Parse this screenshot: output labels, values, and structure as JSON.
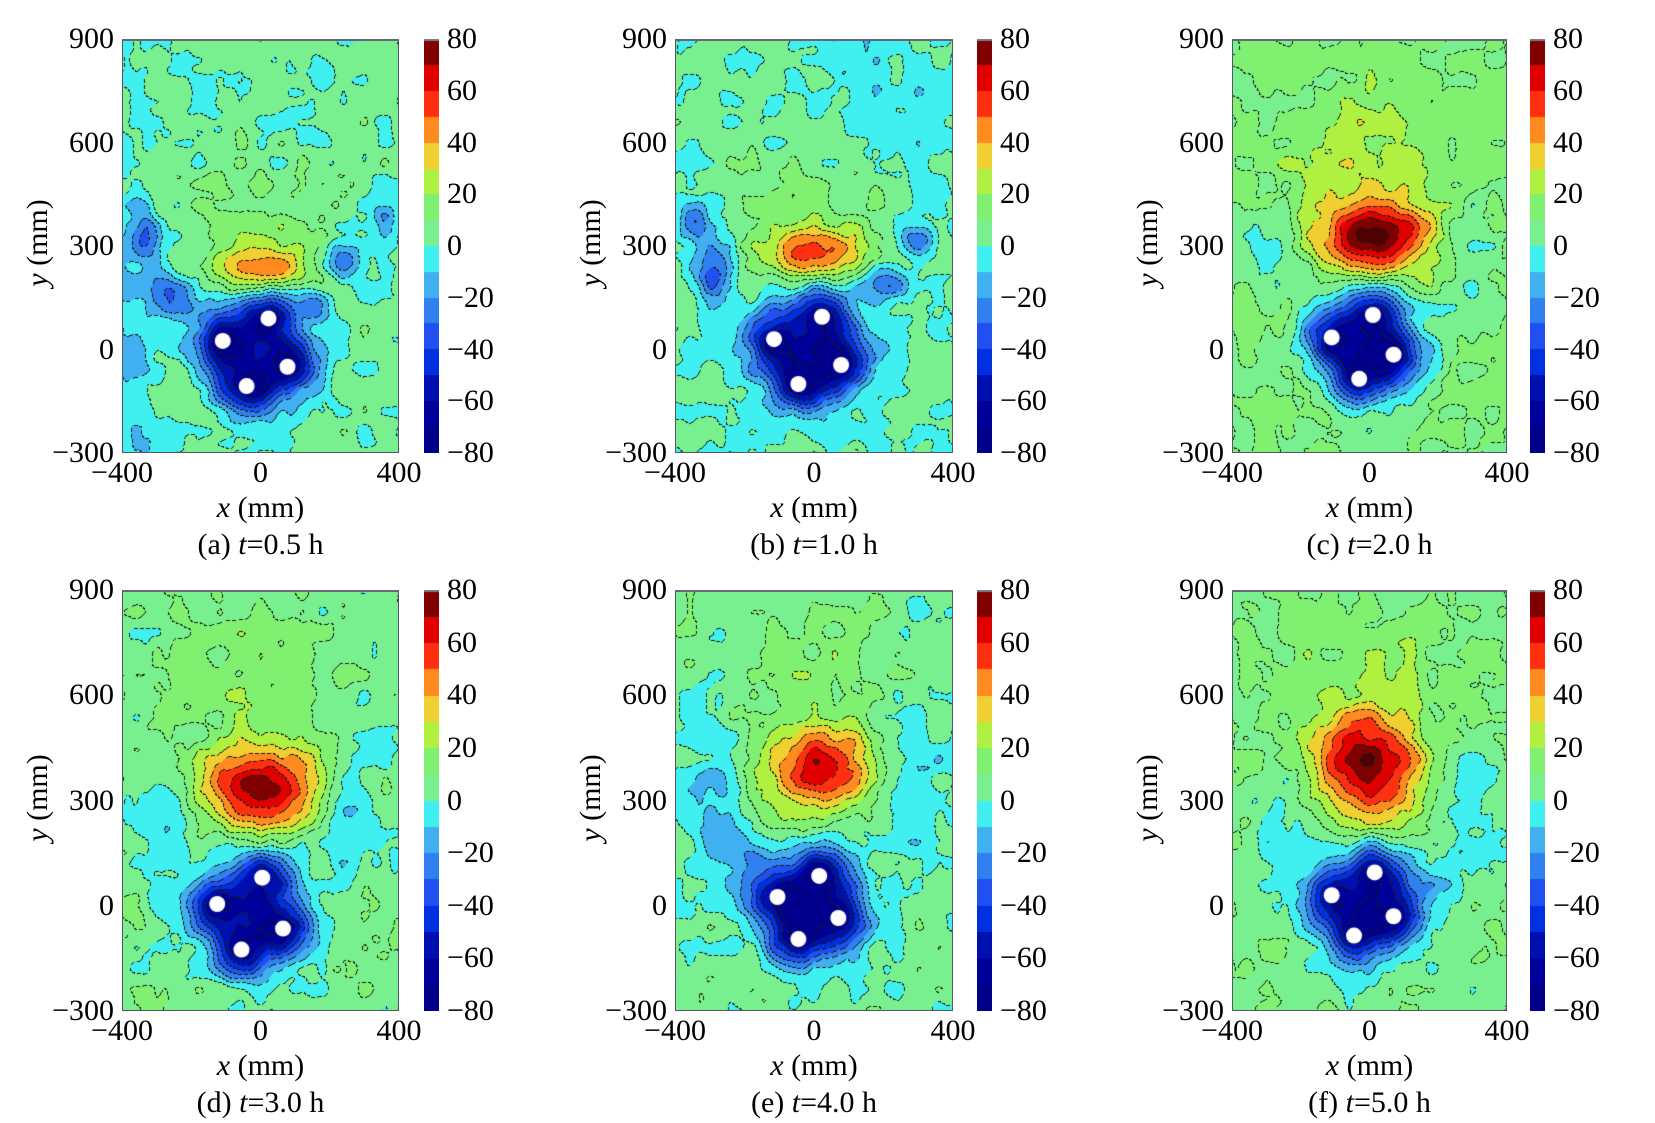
{
  "figure": {
    "x_axis_var": "x",
    "x_axis_unit": " (mm)",
    "y_axis_var": "y",
    "y_axis_unit": " (mm)"
  },
  "chart_data": [
    {
      "type": "heatmap",
      "subtype": "filled-contour",
      "panel": "a",
      "caption_prefix": "(a) ",
      "caption_var": "t",
      "caption_value": "=0.5 h",
      "xlabel": "x (mm)",
      "ylabel": "y (mm)",
      "xlim": [
        -400,
        400
      ],
      "ylim": [
        -300,
        900
      ],
      "xticks": [
        -400,
        0,
        400
      ],
      "yticks": [
        -300,
        0,
        300,
        600,
        900
      ],
      "colorbar": {
        "range": [
          -80,
          80
        ],
        "ticks": [
          80,
          60,
          40,
          20,
          0,
          -20,
          -40,
          -60,
          -80
        ]
      },
      "background_level": 3,
      "holes": [
        {
          "x": 23,
          "y": 90
        },
        {
          "x": -109,
          "y": 25
        },
        {
          "x": 78,
          "y": -50
        },
        {
          "x": -40,
          "y": -106
        }
      ],
      "features": [
        {
          "x": 10,
          "y": 230,
          "peak": 38,
          "sx": 110,
          "sy": 45
        },
        {
          "x": -20,
          "y": 360,
          "peak": 10,
          "sx": 160,
          "sy": 130
        },
        {
          "x": -330,
          "y": 330,
          "peak": -30,
          "sx": 30,
          "sy": 50
        },
        {
          "x": -250,
          "y": 160,
          "peak": -30,
          "sx": 45,
          "sy": 45
        },
        {
          "x": 230,
          "y": 260,
          "peak": -32,
          "sx": 45,
          "sy": 40
        },
        {
          "x": 150,
          "y": 130,
          "peak": -25,
          "sx": 35,
          "sy": 40
        },
        {
          "x": 360,
          "y": 380,
          "peak": -28,
          "sx": 25,
          "sy": 50
        },
        {
          "x": -380,
          "y": 100,
          "peak": -14,
          "sx": 60,
          "sy": 400
        }
      ]
    },
    {
      "type": "heatmap",
      "subtype": "filled-contour",
      "panel": "b",
      "caption_prefix": "(b) ",
      "caption_var": "t",
      "caption_value": "=1.0 h",
      "xlabel": "x (mm)",
      "ylabel": "y (mm)",
      "xlim": [
        -400,
        400
      ],
      "ylim": [
        -300,
        900
      ],
      "xticks": [
        -400,
        0,
        400
      ],
      "yticks": [
        -300,
        0,
        300,
        600,
        900
      ],
      "colorbar": {
        "range": [
          -80,
          80
        ],
        "ticks": [
          80,
          60,
          40,
          20,
          0,
          -20,
          -40,
          -60,
          -80
        ]
      },
      "background_level": 2,
      "holes": [
        {
          "x": 23,
          "y": 95
        },
        {
          "x": -115,
          "y": 30
        },
        {
          "x": 78,
          "y": -45
        },
        {
          "x": -45,
          "y": -100
        }
      ],
      "features": [
        {
          "x": 0,
          "y": 280,
          "peak": 45,
          "sx": 110,
          "sy": 55
        },
        {
          "x": -10,
          "y": 420,
          "peak": 14,
          "sx": 140,
          "sy": 120
        },
        {
          "x": -290,
          "y": 230,
          "peak": -34,
          "sx": 40,
          "sy": 70
        },
        {
          "x": 200,
          "y": 200,
          "peak": -32,
          "sx": 50,
          "sy": 40
        },
        {
          "x": 300,
          "y": 320,
          "peak": -30,
          "sx": 40,
          "sy": 35
        },
        {
          "x": -350,
          "y": 370,
          "peak": -25,
          "sx": 30,
          "sy": 35
        },
        {
          "x": 200,
          "y": 700,
          "peak": -8,
          "sx": 200,
          "sy": 150
        }
      ]
    },
    {
      "type": "heatmap",
      "subtype": "filled-contour",
      "panel": "c",
      "caption_prefix": "(c) ",
      "caption_var": "t",
      "caption_value": "=2.0 h",
      "xlabel": "x (mm)",
      "ylabel": "y (mm)",
      "xlim": [
        -400,
        400
      ],
      "ylim": [
        -300,
        900
      ],
      "xticks": [
        -400,
        0,
        400
      ],
      "yticks": [
        -300,
        0,
        300,
        600,
        900
      ],
      "colorbar": {
        "range": [
          -80,
          80
        ],
        "ticks": [
          80,
          60,
          40,
          20,
          0,
          -20,
          -40,
          -60,
          -80
        ]
      },
      "background_level": 10,
      "holes": [
        {
          "x": 10,
          "y": 100
        },
        {
          "x": -110,
          "y": 35
        },
        {
          "x": 70,
          "y": -15
        },
        {
          "x": -30,
          "y": -85
        }
      ],
      "features": [
        {
          "x": 20,
          "y": 330,
          "peak": 72,
          "sx": 110,
          "sy": 70
        },
        {
          "x": 0,
          "y": 560,
          "peak": 16,
          "sx": 180,
          "sy": 140
        },
        {
          "x": -300,
          "y": 300,
          "peak": -14,
          "sx": 60,
          "sy": 90
        },
        {
          "x": 300,
          "y": 300,
          "peak": -14,
          "sx": 60,
          "sy": 100
        },
        {
          "x": -260,
          "y": 700,
          "peak": -6,
          "sx": 60,
          "sy": 60
        }
      ]
    },
    {
      "type": "heatmap",
      "subtype": "filled-contour",
      "panel": "d",
      "caption_prefix": "(d) ",
      "caption_var": "t",
      "caption_value": "=3.0 h",
      "xlabel": "x (mm)",
      "ylabel": "y (mm)",
      "xlim": [
        -400,
        400
      ],
      "ylim": [
        -300,
        900
      ],
      "xticks": [
        -400,
        0,
        400
      ],
      "yticks": [
        -300,
        0,
        300,
        600,
        900
      ],
      "colorbar": {
        "range": [
          -80,
          80
        ],
        "ticks": [
          80,
          60,
          40,
          20,
          0,
          -20,
          -40,
          -60,
          -80
        ]
      },
      "background_level": 6,
      "holes": [
        {
          "x": 5,
          "y": 80
        },
        {
          "x": -125,
          "y": 5
        },
        {
          "x": 65,
          "y": -65
        },
        {
          "x": -55,
          "y": -125
        }
      ],
      "features": [
        {
          "x": 0,
          "y": 340,
          "peak": 72,
          "sx": 120,
          "sy": 80
        },
        {
          "x": 0,
          "y": 620,
          "peak": 10,
          "sx": 140,
          "sy": 140
        },
        {
          "x": 250,
          "y": 250,
          "peak": -22,
          "sx": 60,
          "sy": 90
        },
        {
          "x": -280,
          "y": 260,
          "peak": -16,
          "sx": 60,
          "sy": 120
        },
        {
          "x": 300,
          "y": 480,
          "peak": -10,
          "sx": 80,
          "sy": 80
        }
      ]
    },
    {
      "type": "heatmap",
      "subtype": "filled-contour",
      "panel": "e",
      "caption_prefix": "(e) ",
      "caption_var": "t",
      "caption_value": "=4.0 h",
      "xlabel": "x (mm)",
      "ylabel": "y (mm)",
      "xlim": [
        -400,
        400
      ],
      "ylim": [
        -300,
        900
      ],
      "xticks": [
        -400,
        0,
        400
      ],
      "yticks": [
        -300,
        0,
        300,
        600,
        900
      ],
      "colorbar": {
        "range": [
          -80,
          80
        ],
        "ticks": [
          80,
          60,
          40,
          20,
          0,
          -20,
          -40,
          -60,
          -80
        ]
      },
      "background_level": 4,
      "holes": [
        {
          "x": 15,
          "y": 85
        },
        {
          "x": -105,
          "y": 25
        },
        {
          "x": 70,
          "y": -35
        },
        {
          "x": -45,
          "y": -95
        }
      ],
      "features": [
        {
          "x": 20,
          "y": 390,
          "peak": 62,
          "sx": 120,
          "sy": 85
        },
        {
          "x": 0,
          "y": 650,
          "peak": 10,
          "sx": 140,
          "sy": 130
        },
        {
          "x": -280,
          "y": 300,
          "peak": -18,
          "sx": 70,
          "sy": 150
        },
        {
          "x": 280,
          "y": 340,
          "peak": -18,
          "sx": 70,
          "sy": 130
        },
        {
          "x": -200,
          "y": 150,
          "peak": -14,
          "sx": 50,
          "sy": 50
        }
      ]
    },
    {
      "type": "heatmap",
      "subtype": "filled-contour",
      "panel": "f",
      "caption_prefix": "(f) ",
      "caption_var": "t",
      "caption_value": "=5.0 h",
      "xlabel": "x (mm)",
      "ylabel": "y (mm)",
      "xlim": [
        -400,
        400
      ],
      "ylim": [
        -300,
        900
      ],
      "xticks": [
        -400,
        0,
        400
      ],
      "yticks": [
        -300,
        0,
        300,
        600,
        900
      ],
      "colorbar": {
        "range": [
          -80,
          80
        ],
        "ticks": [
          80,
          60,
          40,
          20,
          0,
          -20,
          -40,
          -60,
          -80
        ]
      },
      "background_level": 8,
      "holes": [
        {
          "x": 15,
          "y": 95
        },
        {
          "x": -110,
          "y": 30
        },
        {
          "x": 70,
          "y": -30
        },
        {
          "x": -45,
          "y": -85
        }
      ],
      "features": [
        {
          "x": 0,
          "y": 400,
          "peak": 68,
          "sx": 110,
          "sy": 110
        },
        {
          "x": 0,
          "y": 680,
          "peak": 10,
          "sx": 150,
          "sy": 120
        },
        {
          "x": -260,
          "y": 230,
          "peak": -16,
          "sx": 60,
          "sy": 110
        },
        {
          "x": 270,
          "y": 300,
          "peak": -16,
          "sx": 70,
          "sy": 160
        },
        {
          "x": 180,
          "y": 60,
          "peak": -12,
          "sx": 70,
          "sy": 60
        }
      ]
    }
  ],
  "colormap": {
    "name": "jet-like discrete",
    "levels": [
      -80,
      -70,
      -60,
      -50,
      -40,
      -30,
      -20,
      -10,
      0,
      10,
      20,
      30,
      40,
      50,
      60,
      70,
      80
    ],
    "colors": [
      "#00008a",
      "#00009a",
      "#0010b0",
      "#0030e0",
      "#2050f0",
      "#3080f0",
      "#40b0f0",
      "#40f0f0",
      "#78f090",
      "#80f070",
      "#b0f040",
      "#f0d030",
      "#ff8a20",
      "#ff3010",
      "#e00000",
      "#800000",
      "#500000"
    ]
  }
}
